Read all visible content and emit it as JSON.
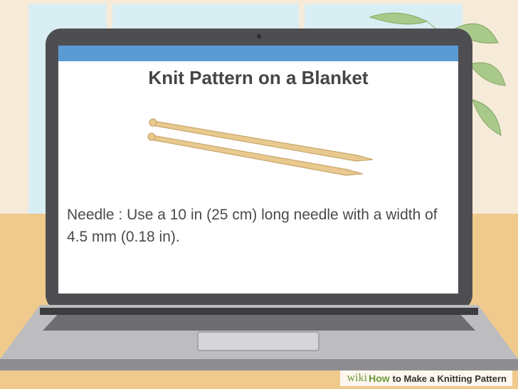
{
  "slide": {
    "title": "Knit Pattern on a Blanket",
    "label": "Needle :",
    "text": "Use a 10 in (25 cm) long needle with a width of 4.5 mm (0.18 in)."
  },
  "watermark": {
    "brand": "wiki",
    "how": "How",
    "rest": "to Make a Knitting Pattern"
  },
  "colors": {
    "wall": "#f6ead9",
    "desk": "#f0c98c",
    "laptop_frame": "#4e4e52",
    "title_bar": "#5b9bd5",
    "needle": "#e8c98e",
    "keyboard": "#c8c8c8"
  }
}
